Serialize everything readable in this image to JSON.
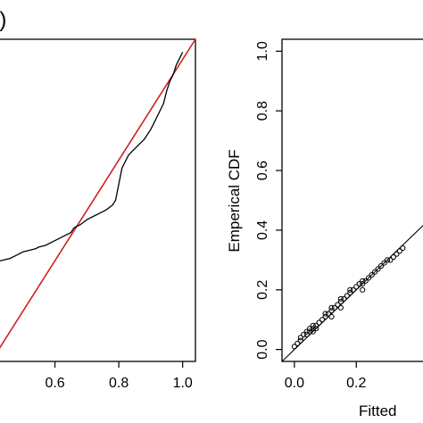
{
  "chart_data": [
    {
      "type": "line",
      "panel_label": "b)",
      "title": "",
      "xlabel": "",
      "ylabel": "",
      "xlim": [
        0.4,
        1.04
      ],
      "ylim": [
        0.0,
        1.0
      ],
      "x_ticks": [
        0.6,
        0.8,
        1.0
      ],
      "x_tick_labels": [
        "0.6",
        "0.8",
        "1.0"
      ],
      "grid": false,
      "series": [
        {
          "color": "#cc2222",
          "style": "solid",
          "x": [
            0.4,
            1.04
          ],
          "y": [
            0.0,
            1.0
          ]
        },
        {
          "color": "#000000",
          "style": "solid",
          "x": [
            0.4,
            0.42,
            0.44,
            0.46,
            0.48,
            0.5,
            0.52,
            0.54,
            0.55,
            0.57,
            0.59,
            0.61,
            0.63,
            0.65,
            0.66,
            0.68,
            0.7,
            0.72,
            0.74,
            0.76,
            0.78,
            0.79,
            0.8,
            0.81,
            0.82,
            0.83,
            0.84,
            0.85,
            0.86,
            0.88,
            0.9,
            0.91,
            0.92,
            0.94,
            0.95,
            0.96,
            0.97,
            0.98,
            0.99,
            1.0
          ],
          "y": [
            0.3,
            0.31,
            0.315,
            0.32,
            0.33,
            0.34,
            0.345,
            0.35,
            0.355,
            0.36,
            0.37,
            0.38,
            0.39,
            0.4,
            0.415,
            0.425,
            0.44,
            0.45,
            0.46,
            0.47,
            0.485,
            0.5,
            0.55,
            0.6,
            0.62,
            0.64,
            0.65,
            0.66,
            0.67,
            0.69,
            0.72,
            0.74,
            0.76,
            0.8,
            0.84,
            0.87,
            0.89,
            0.92,
            0.94,
            0.96
          ]
        }
      ]
    },
    {
      "type": "scatter",
      "title": "",
      "xlabel": "Fitted",
      "ylabel": "Emperical CDF",
      "xlim": [
        -0.04,
        0.45
      ],
      "ylim": [
        -0.04,
        1.04
      ],
      "x_ticks": [
        0.0,
        0.2
      ],
      "x_tick_labels": [
        "0.0",
        "0.2"
      ],
      "y_ticks": [
        0.0,
        0.2,
        0.4,
        0.6,
        0.8,
        1.0
      ],
      "y_tick_labels": [
        "0.0",
        "0.2",
        "0.4",
        "0.6",
        "0.8",
        "1.0"
      ],
      "grid": false,
      "reference_line": {
        "x": [
          -0.04,
          0.45
        ],
        "y": [
          -0.04,
          0.45
        ]
      },
      "points": {
        "x": [
          0.0,
          0.01,
          0.02,
          0.02,
          0.03,
          0.04,
          0.04,
          0.05,
          0.05,
          0.06,
          0.06,
          0.06,
          0.07,
          0.07,
          0.08,
          0.09,
          0.1,
          0.1,
          0.11,
          0.12,
          0.12,
          0.12,
          0.13,
          0.14,
          0.15,
          0.15,
          0.15,
          0.16,
          0.17,
          0.18,
          0.18,
          0.19,
          0.2,
          0.21,
          0.22,
          0.22,
          0.22,
          0.23,
          0.24,
          0.25,
          0.26,
          0.27,
          0.28,
          0.29,
          0.3,
          0.31,
          0.32,
          0.33,
          0.34,
          0.35
        ],
        "y": [
          0.01,
          0.02,
          0.03,
          0.04,
          0.05,
          0.05,
          0.06,
          0.06,
          0.07,
          0.06,
          0.07,
          0.08,
          0.07,
          0.08,
          0.09,
          0.1,
          0.11,
          0.12,
          0.12,
          0.11,
          0.13,
          0.14,
          0.14,
          0.15,
          0.14,
          0.16,
          0.17,
          0.17,
          0.18,
          0.19,
          0.2,
          0.2,
          0.21,
          0.22,
          0.2,
          0.22,
          0.23,
          0.23,
          0.24,
          0.25,
          0.26,
          0.27,
          0.28,
          0.29,
          0.3,
          0.3,
          0.31,
          0.32,
          0.33,
          0.34
        ]
      }
    }
  ]
}
